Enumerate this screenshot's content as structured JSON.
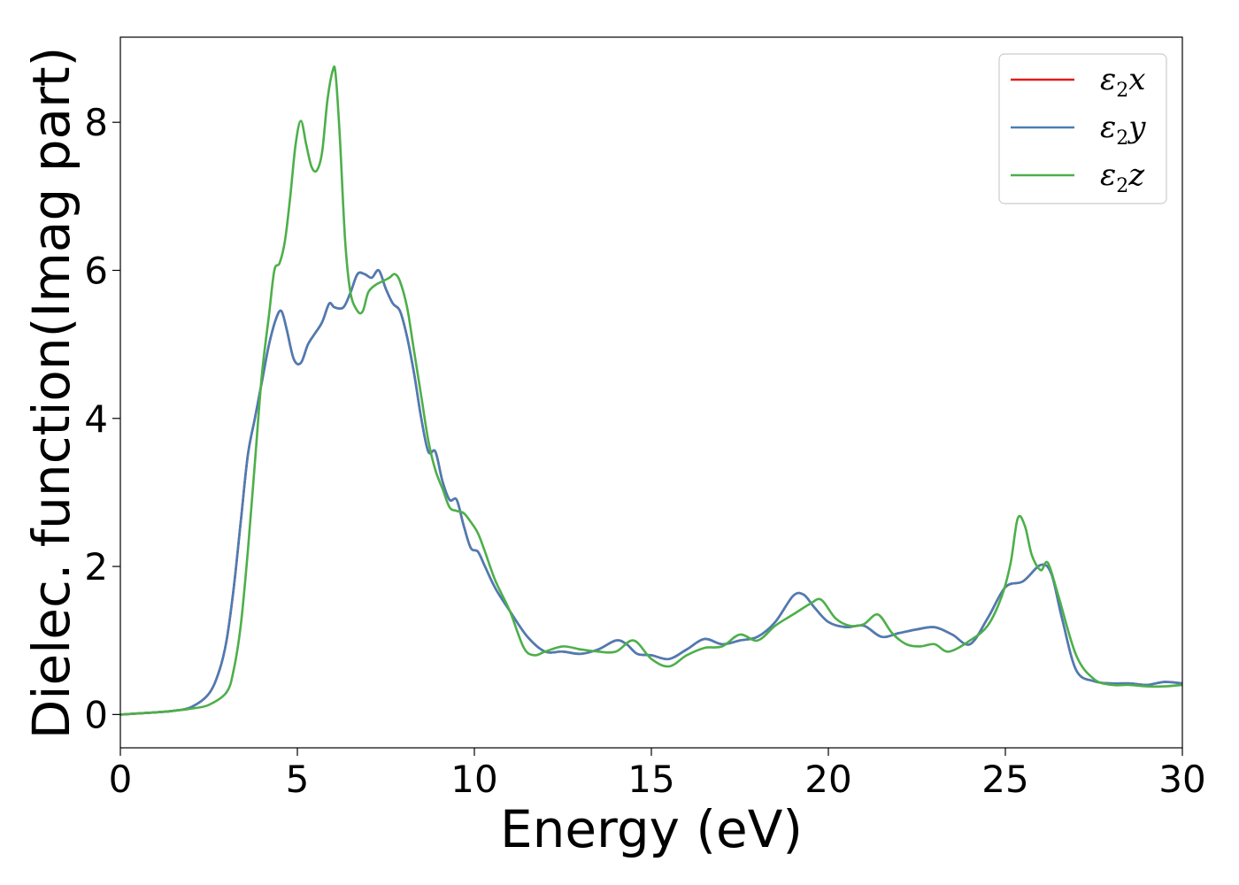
{
  "chart_data": {
    "type": "line",
    "title": "",
    "xlabel": "Energy (eV)",
    "ylabel": "Dielec. function(Imag part)",
    "xlim": [
      0,
      30
    ],
    "ylim": [
      -0.45,
      9.15
    ],
    "xticks": [
      0,
      5,
      10,
      15,
      20,
      25,
      30
    ],
    "yticks": [
      0,
      2,
      4,
      6,
      8
    ],
    "grid": false,
    "legend_position": "top-right",
    "series": [
      {
        "name": "ε₂x",
        "legend": {
          "base": "ε",
          "sub": "2",
          "var": "x"
        },
        "color": "#e41a1c",
        "x": [
          0,
          1,
          1.5,
          2,
          2.5,
          2.8,
          3,
          3.2,
          3.4,
          3.6,
          3.8,
          4,
          4.2,
          4.4,
          4.55,
          4.7,
          4.9,
          5.1,
          5.3,
          5.5,
          5.7,
          5.9,
          6.05,
          6.3,
          6.5,
          6.7,
          6.9,
          7.1,
          7.3,
          7.5,
          7.7,
          7.9,
          8.1,
          8.3,
          8.5,
          8.7,
          8.9,
          9.1,
          9.3,
          9.5,
          9.7,
          9.9,
          10.1,
          10.3,
          10.6,
          11,
          11.5,
          12,
          12.5,
          13,
          13.5,
          14,
          14.3,
          14.6,
          15,
          15.5,
          16,
          16.5,
          17,
          17.5,
          18,
          18.5,
          19,
          19.3,
          19.6,
          20,
          20.5,
          21,
          21.5,
          22,
          22.5,
          23,
          23.5,
          24,
          24.5,
          25,
          25.5,
          26,
          26.3,
          26.6,
          27,
          27.5,
          28,
          28.5,
          29,
          29.5,
          30
        ],
        "y": [
          0,
          0.03,
          0.05,
          0.1,
          0.28,
          0.6,
          1,
          1.7,
          2.6,
          3.5,
          4.0,
          4.5,
          5.0,
          5.35,
          5.45,
          5.2,
          4.8,
          4.75,
          5.0,
          5.15,
          5.3,
          5.55,
          5.5,
          5.5,
          5.7,
          5.95,
          5.95,
          5.9,
          6.0,
          5.75,
          5.55,
          5.45,
          5.1,
          4.6,
          4.0,
          3.55,
          3.55,
          3.15,
          2.9,
          2.9,
          2.55,
          2.25,
          2.2,
          2.0,
          1.7,
          1.4,
          1.05,
          0.85,
          0.85,
          0.82,
          0.88,
          1.0,
          0.95,
          0.82,
          0.8,
          0.75,
          0.88,
          1.02,
          0.95,
          1.0,
          1.05,
          1.25,
          1.6,
          1.62,
          1.45,
          1.25,
          1.18,
          1.2,
          1.05,
          1.1,
          1.15,
          1.18,
          1.08,
          0.95,
          1.3,
          1.72,
          1.8,
          2.02,
          1.9,
          1.3,
          0.6,
          0.45,
          0.42,
          0.42,
          0.4,
          0.44,
          0.42
        ]
      },
      {
        "name": "ε₂y",
        "legend": {
          "base": "ε",
          "sub": "2",
          "var": "y"
        },
        "color": "#4a7db5",
        "x": [
          0,
          1,
          1.5,
          2,
          2.5,
          2.8,
          3,
          3.2,
          3.4,
          3.6,
          3.8,
          4,
          4.2,
          4.4,
          4.55,
          4.7,
          4.9,
          5.1,
          5.3,
          5.5,
          5.7,
          5.9,
          6.05,
          6.3,
          6.5,
          6.7,
          6.9,
          7.1,
          7.3,
          7.5,
          7.7,
          7.9,
          8.1,
          8.3,
          8.5,
          8.7,
          8.9,
          9.1,
          9.3,
          9.5,
          9.7,
          9.9,
          10.1,
          10.3,
          10.6,
          11,
          11.5,
          12,
          12.5,
          13,
          13.5,
          14,
          14.3,
          14.6,
          15,
          15.5,
          16,
          16.5,
          17,
          17.5,
          18,
          18.5,
          19,
          19.3,
          19.6,
          20,
          20.5,
          21,
          21.5,
          22,
          22.5,
          23,
          23.5,
          24,
          24.5,
          25,
          25.5,
          26,
          26.3,
          26.6,
          27,
          27.5,
          28,
          28.5,
          29,
          29.5,
          30
        ],
        "y": [
          0,
          0.03,
          0.05,
          0.1,
          0.28,
          0.6,
          1,
          1.7,
          2.6,
          3.5,
          4.0,
          4.5,
          5.0,
          5.35,
          5.45,
          5.2,
          4.8,
          4.75,
          5.0,
          5.15,
          5.3,
          5.55,
          5.5,
          5.5,
          5.7,
          5.95,
          5.95,
          5.9,
          6.0,
          5.75,
          5.55,
          5.45,
          5.1,
          4.6,
          4.0,
          3.55,
          3.55,
          3.15,
          2.9,
          2.9,
          2.55,
          2.25,
          2.2,
          2.0,
          1.7,
          1.4,
          1.05,
          0.85,
          0.85,
          0.82,
          0.88,
          1.0,
          0.95,
          0.82,
          0.8,
          0.75,
          0.88,
          1.02,
          0.95,
          1.0,
          1.05,
          1.25,
          1.6,
          1.62,
          1.45,
          1.25,
          1.18,
          1.2,
          1.05,
          1.1,
          1.15,
          1.18,
          1.08,
          0.95,
          1.3,
          1.72,
          1.8,
          2.02,
          1.9,
          1.3,
          0.6,
          0.45,
          0.42,
          0.42,
          0.4,
          0.44,
          0.42
        ]
      },
      {
        "name": "ε₂z",
        "legend": {
          "base": "ε",
          "sub": "2",
          "var": "z"
        },
        "color": "#4daf4a",
        "x": [
          0,
          1,
          1.5,
          2,
          2.5,
          3,
          3.2,
          3.4,
          3.6,
          3.8,
          4,
          4.2,
          4.35,
          4.5,
          4.65,
          4.8,
          4.95,
          5.1,
          5.25,
          5.4,
          5.55,
          5.7,
          5.85,
          6.0,
          6.08,
          6.2,
          6.35,
          6.5,
          6.7,
          6.85,
          7.0,
          7.2,
          7.4,
          7.6,
          7.75,
          7.9,
          8.1,
          8.3,
          8.5,
          8.7,
          8.9,
          9.1,
          9.3,
          9.5,
          9.7,
          9.9,
          10.1,
          10.3,
          10.6,
          11,
          11.4,
          11.7,
          12,
          12.5,
          13,
          13.5,
          14,
          14.5,
          15,
          15.5,
          16,
          16.5,
          17,
          17.5,
          18,
          18.5,
          19,
          19.5,
          19.8,
          20.2,
          20.6,
          21,
          21.4,
          21.8,
          22.2,
          22.6,
          23,
          23.4,
          24,
          24.5,
          24.9,
          25.15,
          25.35,
          25.55,
          25.75,
          26,
          26.2,
          26.5,
          27,
          27.5,
          28,
          28.5,
          29,
          29.5,
          30
        ],
        "y": [
          0,
          0.03,
          0.05,
          0.08,
          0.13,
          0.3,
          0.6,
          1.2,
          2.2,
          3.4,
          4.6,
          5.4,
          6.0,
          6.1,
          6.4,
          7.0,
          7.7,
          8.02,
          7.7,
          7.4,
          7.35,
          7.6,
          8.3,
          8.7,
          8.65,
          7.8,
          6.4,
          5.7,
          5.45,
          5.45,
          5.7,
          5.8,
          5.85,
          5.9,
          5.95,
          5.85,
          5.5,
          4.9,
          4.3,
          3.7,
          3.3,
          3.05,
          2.8,
          2.75,
          2.72,
          2.6,
          2.45,
          2.2,
          1.8,
          1.4,
          0.9,
          0.8,
          0.85,
          0.92,
          0.88,
          0.85,
          0.85,
          1.0,
          0.75,
          0.65,
          0.8,
          0.9,
          0.92,
          1.08,
          1.0,
          1.2,
          1.35,
          1.5,
          1.55,
          1.3,
          1.2,
          1.22,
          1.35,
          1.1,
          0.95,
          0.92,
          0.95,
          0.85,
          1.0,
          1.2,
          1.6,
          2.05,
          2.65,
          2.55,
          2.15,
          1.95,
          2.05,
          1.6,
          0.8,
          0.48,
          0.4,
          0.4,
          0.38,
          0.38,
          0.4
        ]
      }
    ]
  }
}
